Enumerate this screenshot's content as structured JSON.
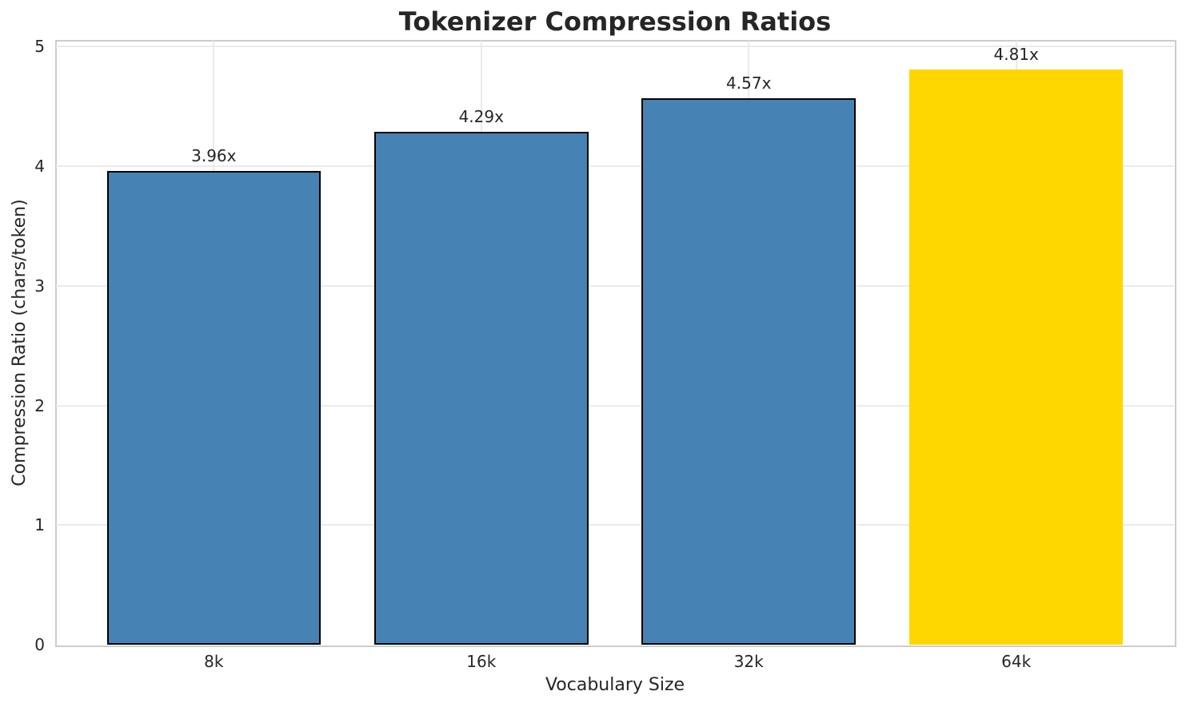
{
  "title": "Tokenizer Compression Ratios",
  "chart_data": {
    "type": "bar",
    "title": "Tokenizer Compression Ratios",
    "xlabel": "Vocabulary Size",
    "ylabel": "Compression Ratio (chars/token)",
    "categories": [
      "8k",
      "16k",
      "32k",
      "64k"
    ],
    "values": [
      3.96,
      4.29,
      4.57,
      4.81
    ],
    "bar_labels": [
      "3.96x",
      "4.29x",
      "4.57x",
      "4.81x"
    ],
    "yticks": [
      0,
      1,
      2,
      3,
      4,
      5
    ],
    "ylim": [
      0,
      5.05
    ],
    "grid": true,
    "legend_position": "none",
    "highlight_index": 3,
    "colors": {
      "bar": "#4682B4",
      "highlight_bar": "#FFD700",
      "bar_edge": "#000000",
      "grid": "#ebebeb",
      "spine": "#cccccc",
      "text": "#262626",
      "background": "#ffffff"
    }
  }
}
